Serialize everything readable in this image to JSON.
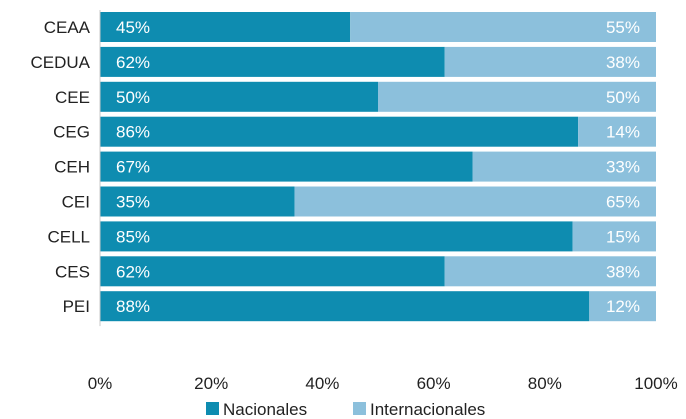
{
  "chart_data": {
    "type": "bar",
    "orientation": "horizontal",
    "stacked": true,
    "percent": true,
    "categories": [
      "CEAA",
      "CEDUA",
      "CEE",
      "CEG",
      "CEH",
      "CEI",
      "CELL",
      "CES",
      "PEI"
    ],
    "series": [
      {
        "name": "Nacionales",
        "color": "#0e8cb0",
        "values": [
          45,
          62,
          50,
          86,
          67,
          35,
          85,
          62,
          88
        ],
        "labels": [
          "45%",
          "62%",
          "50%",
          "86%",
          "67%",
          "35%",
          "85%",
          "62%",
          "88%"
        ]
      },
      {
        "name": "Internacionales",
        "color": "#8cc0dc",
        "values": [
          55,
          38,
          50,
          14,
          33,
          65,
          15,
          38,
          12
        ],
        "labels": [
          "55%",
          "38%",
          "50%",
          "14%",
          "33%",
          "65%",
          "15%",
          "38%",
          "12%"
        ]
      }
    ],
    "xlim": [
      0,
      100
    ],
    "xticks": [
      0,
      20,
      40,
      60,
      80,
      100
    ],
    "xtick_labels": [
      "0%",
      "20%",
      "40%",
      "60%",
      "80%",
      "100%"
    ],
    "grid": false,
    "legend_position": "bottom"
  }
}
